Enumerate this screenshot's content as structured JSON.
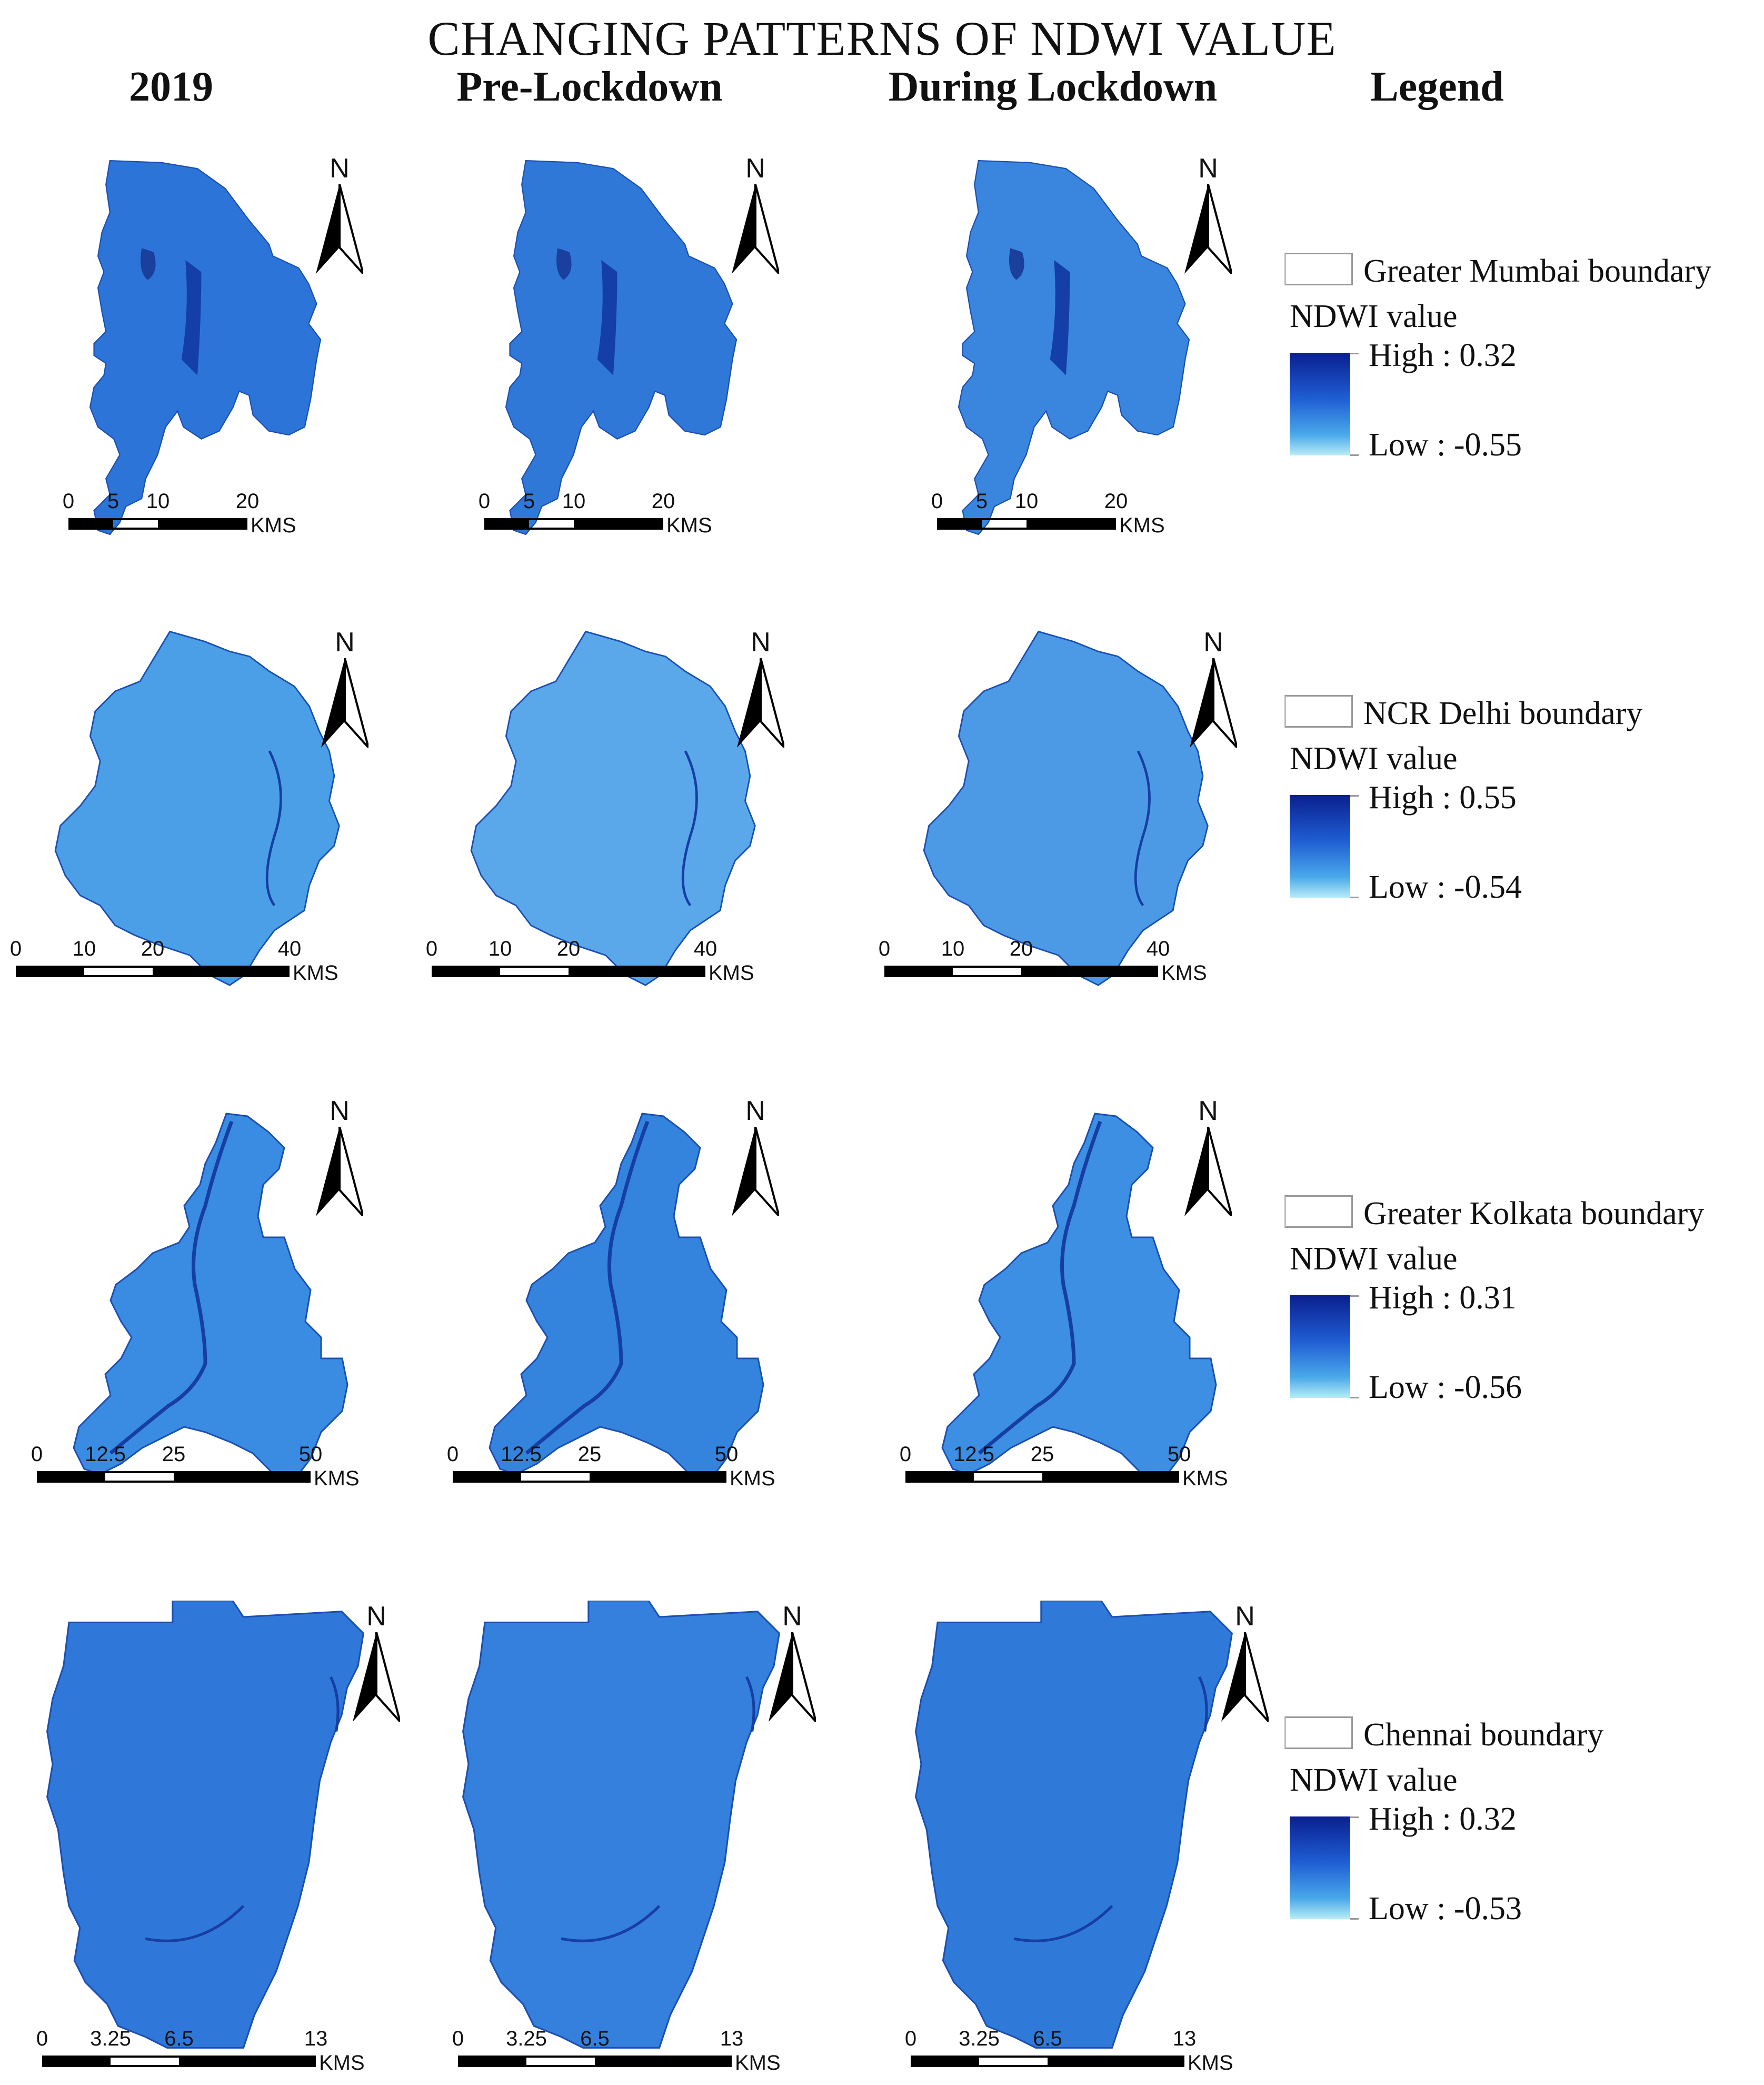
{
  "title": "CHANGING PATTERNS OF NDWI VALUE",
  "columns": [
    "2019",
    "Pre-Lockdown",
    "During Lockdown",
    "Legend"
  ],
  "north_label": "N",
  "unit": "KMS",
  "rows": [
    {
      "city": "mumbai",
      "scale_ticks": [
        "0",
        "5",
        "10",
        "20"
      ],
      "legend": {
        "boundary": "Greater Mumbai boundary",
        "value_title": "NDWI value",
        "high": "High : 0.32",
        "low": "Low : -0.55"
      },
      "fill_colors": [
        "#2d74d9",
        "#2f78d8",
        "#3a86df"
      ]
    },
    {
      "city": "delhi",
      "scale_ticks": [
        "0",
        "10",
        "20",
        "40"
      ],
      "legend": {
        "boundary": "NCR Delhi boundary",
        "value_title": "NDWI value",
        "high": "High : 0.55",
        "low": "Low : -0.54"
      },
      "fill_colors": [
        "#4a9fe6",
        "#5aa8ea",
        "#4c9ae6"
      ]
    },
    {
      "city": "kolkata",
      "scale_ticks": [
        "0",
        "12.5",
        "25",
        "50"
      ],
      "legend": {
        "boundary": "Greater Kolkata boundary",
        "value_title": "NDWI value",
        "high": "High : 0.31",
        "low": "Low : -0.56"
      },
      "fill_colors": [
        "#3a8ce2",
        "#3484de",
        "#3d8fe4"
      ]
    },
    {
      "city": "chennai",
      "scale_ticks": [
        "0",
        "3.25",
        "6.5",
        "13"
      ],
      "legend": {
        "boundary": "Chennai boundary",
        "value_title": "NDWI value",
        "high": "High : 0.32",
        "low": "Low : -0.53"
      },
      "fill_colors": [
        "#2f78da",
        "#3480dc",
        "#2f7ad9"
      ]
    }
  ]
}
